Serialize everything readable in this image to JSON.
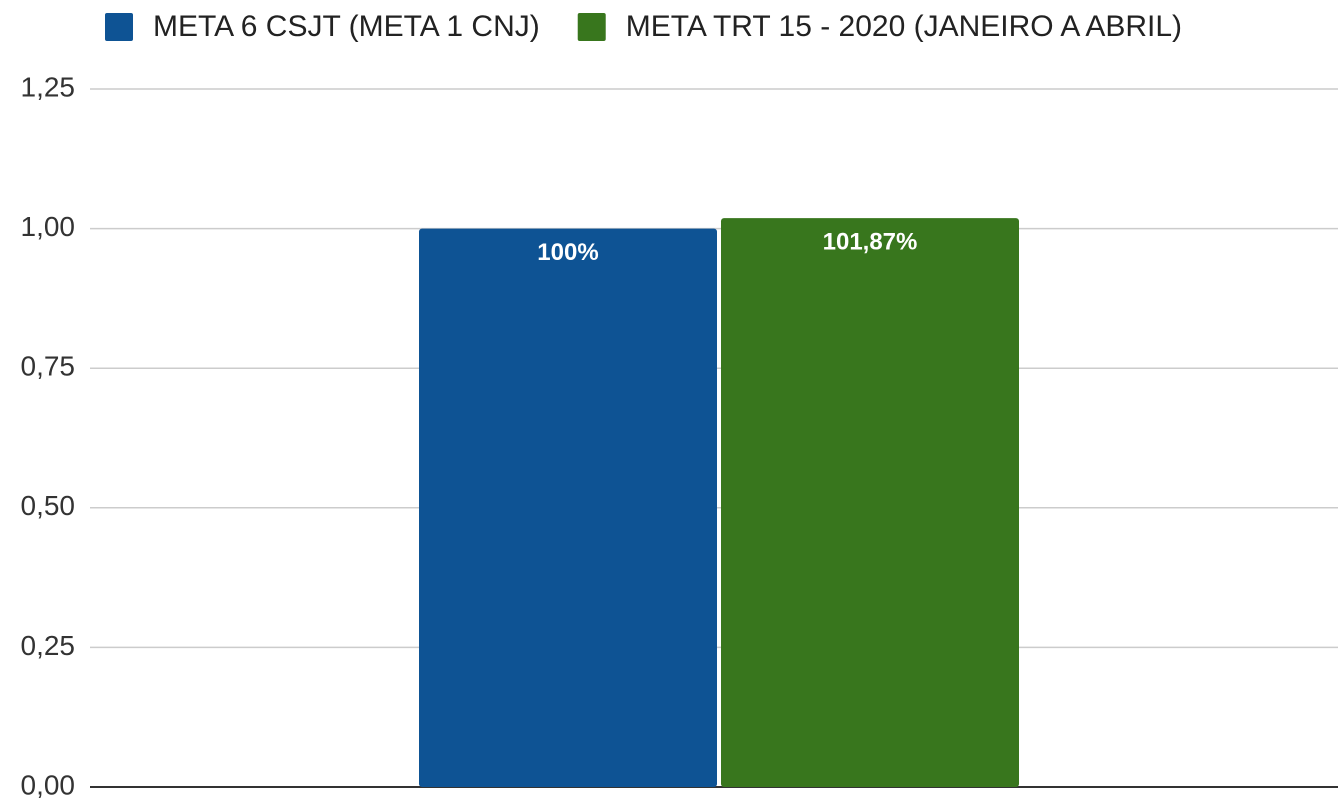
{
  "chart_data": {
    "type": "bar",
    "categories": [
      null
    ],
    "series": [
      {
        "name": "META 6 CSJT (META 1 CNJ)",
        "color": "#0e5394",
        "values": [
          1.0
        ],
        "value_labels": [
          "100%"
        ]
      },
      {
        "name": "META TRT 15 - 2020 (JANEIRO A ABRIL)",
        "color": "#38761d",
        "values": [
          1.0187
        ],
        "value_labels": [
          "101,87%"
        ]
      }
    ],
    "ylim": [
      0,
      1.25
    ],
    "yticks": [
      {
        "value": 0,
        "label": "0,00"
      },
      {
        "value": 0.25,
        "label": "0,25"
      },
      {
        "value": 0.5,
        "label": "0,50"
      },
      {
        "value": 0.75,
        "label": "0,75"
      },
      {
        "value": 1.0,
        "label": "1,00"
      },
      {
        "value": 1.25,
        "label": "1,25"
      }
    ],
    "grid": true,
    "legend": "top"
  }
}
